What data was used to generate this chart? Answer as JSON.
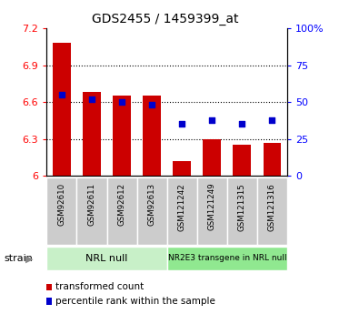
{
  "title": "GDS2455 / 1459399_at",
  "samples": [
    "GSM92610",
    "GSM92611",
    "GSM92612",
    "GSM92613",
    "GSM121242",
    "GSM121249",
    "GSM121315",
    "GSM121316"
  ],
  "red_values": [
    7.08,
    6.68,
    6.65,
    6.65,
    6.12,
    6.3,
    6.25,
    6.27
  ],
  "blue_values": [
    55,
    52,
    50,
    48,
    35,
    38,
    35,
    38
  ],
  "ylim_left": [
    6.0,
    7.2
  ],
  "ylim_right": [
    0,
    100
  ],
  "yticks_left": [
    6.0,
    6.3,
    6.6,
    6.9,
    7.2
  ],
  "yticks_right": [
    0,
    25,
    50,
    75,
    100
  ],
  "ytick_labels_left": [
    "6",
    "6.3",
    "6.6",
    "6.9",
    "7.2"
  ],
  "ytick_labels_right": [
    "0",
    "25",
    "50",
    "75",
    "100%"
  ],
  "group1_label": "NRL null",
  "group2_label": "NR2E3 transgene in NRL null",
  "group1_color": "#c8f0c8",
  "group2_color": "#90e890",
  "bar_color": "#cc0000",
  "dot_color": "#0000cc",
  "bar_width": 0.6,
  "legend_red_label": "transformed count",
  "legend_blue_label": "percentile rank within the sample",
  "strain_label": "strain",
  "tick_label_bg": "#cccccc",
  "grid_linestyle": "dotted",
  "grid_linewidth": 0.8
}
